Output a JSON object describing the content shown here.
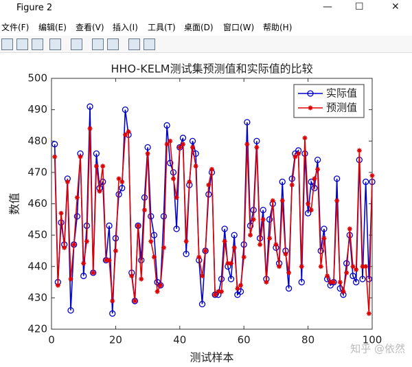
{
  "window": {
    "title": "Figure 2",
    "menu": [
      "文件(F)",
      "编辑(E)",
      "查看(V)",
      "插入(I)",
      "工具(T)",
      "桌面(D)",
      "窗口(W)",
      "帮助(H)"
    ],
    "watermark": "知乎 @依然"
  },
  "chart_data": {
    "type": "line",
    "title": "HHO-KELM测试集预测值和实际值的比较",
    "xlabel": "测试样本",
    "ylabel": "数值",
    "x": [
      1,
      2,
      3,
      4,
      5,
      6,
      7,
      8,
      9,
      10,
      11,
      12,
      13,
      14,
      15,
      16,
      17,
      18,
      19,
      20,
      21,
      22,
      23,
      24,
      25,
      26,
      27,
      28,
      29,
      30,
      31,
      32,
      33,
      34,
      35,
      36,
      37,
      38,
      39,
      40,
      41,
      42,
      43,
      44,
      45,
      46,
      47,
      48,
      49,
      50,
      51,
      52,
      53,
      54,
      55,
      56,
      57,
      58,
      59,
      60,
      61,
      62,
      63,
      64,
      65,
      66,
      67,
      68,
      69,
      70,
      71,
      72,
      73,
      74,
      75,
      76,
      77,
      78,
      79,
      80,
      81,
      82,
      83,
      84,
      85,
      86,
      87,
      88,
      89,
      90,
      91,
      92,
      93,
      94,
      95,
      96,
      97,
      98,
      99,
      100
    ],
    "series": [
      {
        "name": "实际值",
        "color": "#0000cc",
        "marker": "circle",
        "values": [
          479,
          435,
          454,
          447,
          468,
          426,
          447,
          456,
          476,
          437,
          453,
          491,
          438,
          476,
          465,
          467,
          442,
          453,
          425,
          449,
          463,
          465,
          490,
          482,
          438,
          429,
          453,
          442,
          462,
          478,
          456,
          450,
          435,
          434,
          456,
          485,
          473,
          470,
          452,
          478,
          481,
          444,
          466,
          480,
          476,
          442,
          428,
          445,
          463,
          470,
          431,
          431,
          436,
          452,
          440,
          436,
          450,
          431,
          432,
          447,
          486,
          453,
          458,
          480,
          449,
          458,
          436,
          455,
          460,
          446,
          441,
          467,
          445,
          433,
          468,
          476,
          477,
          435,
          476,
          457,
          467,
          465,
          474,
          445,
          452,
          436,
          434,
          435,
          468,
          433,
          431,
          441,
          450,
          437,
          435,
          474,
          436,
          467,
          436,
          467
        ]
      },
      {
        "name": "预测值",
        "color": "#dd0000",
        "marker": "asterisk",
        "values": [
          475,
          434,
          457,
          446,
          467,
          436,
          447,
          462,
          475,
          441,
          448,
          484,
          438,
          472,
          464,
          472,
          442,
          442,
          429,
          445,
          468,
          467,
          482,
          483,
          437,
          429,
          453,
          436,
          458,
          476,
          448,
          443,
          432,
          434,
          446,
          479,
          480,
          468,
          462,
          478,
          479,
          448,
          467,
          478,
          472,
          443,
          437,
          445,
          466,
          471,
          431,
          432,
          432,
          448,
          441,
          441,
          446,
          433,
          434,
          443,
          479,
          450,
          455,
          478,
          447,
          455,
          435,
          449,
          461,
          447,
          440,
          461,
          444,
          438,
          466,
          475,
          476,
          440,
          481,
          460,
          458,
          468,
          471,
          440,
          449,
          437,
          435,
          435,
          461,
          435,
          432,
          438,
          452,
          440,
          439,
          477,
          440,
          440,
          425,
          469
        ]
      }
    ],
    "xlim": [
      0,
      100
    ],
    "xticks": [
      0,
      20,
      40,
      60,
      80,
      100
    ],
    "ylim": [
      420,
      500
    ],
    "yticks": [
      420,
      430,
      440,
      450,
      460,
      470,
      480,
      490,
      500
    ],
    "legend": "upper right"
  }
}
